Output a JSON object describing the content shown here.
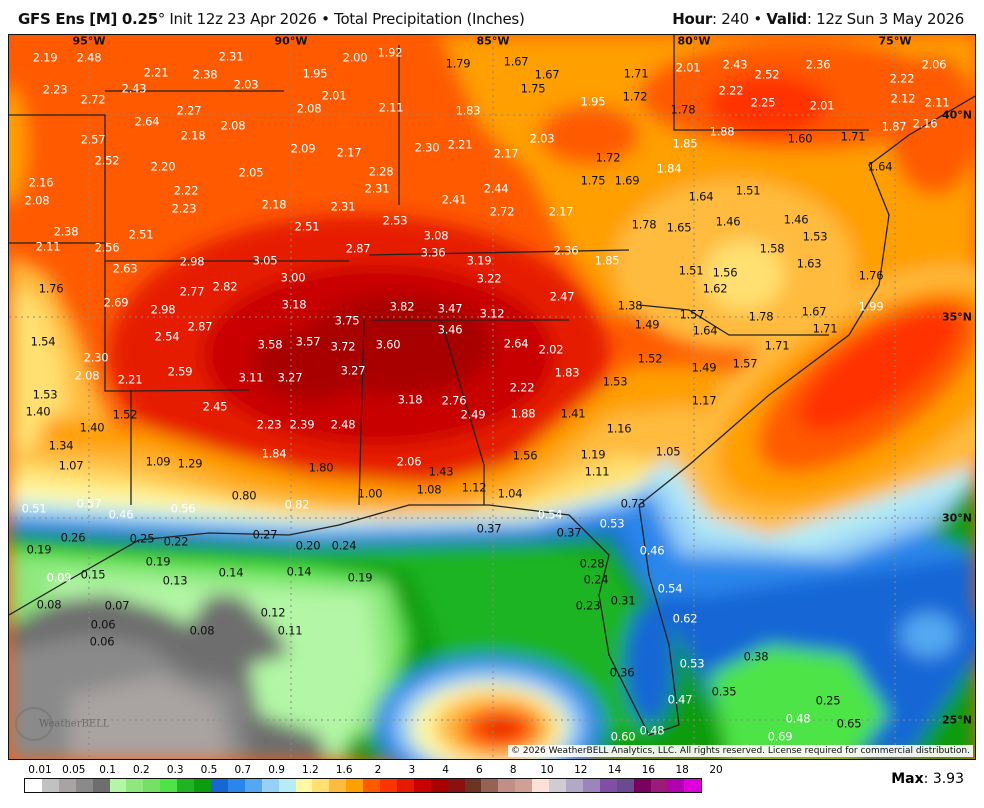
{
  "header": {
    "model": "GFS Ens [M] 0.25",
    "degree": "°",
    "init": "Init 12z 23 Apr 2026",
    "separator": "•",
    "product": "Total Precipitation (Inches)",
    "hour_label": "Hour",
    "hour": "240",
    "valid_label": "Valid",
    "valid": "12z Sun 3 May 2026"
  },
  "map": {
    "longitude_labels": [
      "95°W",
      "90°W",
      "85°W",
      "80°W",
      "75°W"
    ],
    "latitude_labels": [
      "40°N",
      "35°N",
      "30°N",
      "25°N"
    ],
    "values": [
      "2.19",
      "2.48",
      "2.31",
      "2.21",
      "2.38",
      "2.03",
      "2.23",
      "2.43",
      "2.72",
      "2.27",
      "2.64",
      "2.08",
      "2.18",
      "2.57",
      "2.52",
      "2.20",
      "2.05",
      "2.16",
      "2.22",
      "2.08",
      "2.23",
      "2.18",
      "2.38",
      "2.11",
      "2.56",
      "2.51",
      "2.63",
      "2.98",
      "3.05",
      "2.00",
      "1.92",
      "1.95",
      "2.01",
      "2.08",
      "2.11",
      "2.09",
      "2.17",
      "2.28",
      "2.31",
      "2.31",
      "2.51",
      "2.87",
      "2.53",
      "2.30",
      "2.21",
      "1.79",
      "1.83",
      "2.41",
      "3.08",
      "3.36",
      "3.19",
      "3.22",
      "3.00",
      "1.67",
      "1.67",
      "1.75",
      "1.71",
      "1.72",
      "1.95",
      "2.03",
      "2.17",
      "1.72",
      "1.75",
      "1.69",
      "1.85",
      "1.84",
      "1.64",
      "2.44",
      "2.72",
      "2.17",
      "1.78",
      "1.65",
      "1.46",
      "1.51",
      "1.46",
      "1.53",
      "1.58",
      "1.63",
      "2.36",
      "1.85",
      "1.51",
      "1.56",
      "1.62",
      "2.01",
      "2.43",
      "2.52",
      "2.36",
      "2.22",
      "2.25",
      "2.01",
      "2.22",
      "2.06",
      "2.12",
      "2.11",
      "2.16",
      "1.87",
      "1.78",
      "1.88",
      "1.60",
      "1.71",
      "1.64",
      "1.76",
      "1.76",
      "2.69",
      "2.77",
      "2.82",
      "2.98",
      "3.18",
      "3.82",
      "3.47",
      "3.12",
      "2.87",
      "3.75",
      "3.46",
      "1.54",
      "2.54",
      "3.58",
      "3.57",
      "3.72",
      "3.60",
      "2.30",
      "2.08",
      "2.21",
      "2.59",
      "3.11",
      "3.27",
      "3.27",
      "1.53",
      "1.40",
      "1.52",
      "1.40",
      "2.45",
      "3.18",
      "2.76",
      "2.49",
      "2.23",
      "2.39",
      "2.48",
      "1.34",
      "1.84",
      "1.09",
      "1.29",
      "1.07",
      "1.80",
      "2.06",
      "1.43",
      "1.08",
      "1.12",
      "0.80",
      "0.82",
      "1.00",
      "0.51",
      "0.57",
      "0.46",
      "0.56",
      "2.47",
      "1.38",
      "1.49",
      "1.57",
      "1.78",
      "1.67",
      "1.99",
      "1.71",
      "2.64",
      "2.02",
      "1.64",
      "1.71",
      "1.52",
      "1.49",
      "1.57",
      "1.83",
      "1.53",
      "1.17",
      "2.22",
      "1.88",
      "1.41",
      "1.16",
      "1.05",
      "1.56",
      "1.19",
      "1.11",
      "1.04",
      "0.73",
      "0.54",
      "0.53",
      "0.37",
      "0.37",
      "0.46",
      "0.28",
      "0.24",
      "0.23",
      "0.31",
      "0.54",
      "0.62",
      "0.53",
      "0.36",
      "0.47",
      "0.60",
      "0.48",
      "0.38",
      "0.35",
      "0.25",
      "0.48",
      "0.65",
      "0.69",
      "0.19",
      "0.26",
      "0.25",
      "0.22",
      "0.27",
      "0.20",
      "0.24",
      "0.19",
      "0.09",
      "0.15",
      "0.13",
      "0.14",
      "0.14",
      "0.19",
      "0.08",
      "0.07",
      "0.06",
      "0.06",
      "0.08",
      "0.12",
      "0.11"
    ],
    "copyright": "© 2026 WeatherBELL Analytics, LLC. All rights reserved. License required for commercial distribution.",
    "logo_text": "WeatherBELL"
  },
  "legend": {
    "ticks": [
      "0.01",
      "0.05",
      "0.1",
      "0.2",
      "0.3",
      "0.5",
      "0.7",
      "0.9",
      "1.2",
      "1.6",
      "2",
      "3",
      "4",
      "6",
      "8",
      "10",
      "12",
      "14",
      "16",
      "18",
      "20"
    ],
    "colors": [
      "#ffffff",
      "#bfc1c3",
      "#a9a3a1",
      "#8a8a8a",
      "#6e6e6e",
      "#b3f7a6",
      "#8ee87d",
      "#74e064",
      "#4ee447",
      "#1fb424",
      "#0d9c0f",
      "#1766d6",
      "#2a86ea",
      "#52a9f2",
      "#97d0f7",
      "#b5ecf5",
      "#fff9a6",
      "#ffe070",
      "#ffbb3d",
      "#ff9f00",
      "#ff5a00",
      "#ff3300",
      "#e61a00",
      "#c80000",
      "#a80000",
      "#8b1010",
      "#6b3426",
      "#956355",
      "#c28e8a",
      "#d1a095",
      "#fde0d6",
      "#d0cdd2",
      "#b4a8c8",
      "#9b85bb",
      "#7f4fa6",
      "#6a4a90",
      "#7a0060",
      "#9c1a78",
      "#b000b0",
      "#dd00dd"
    ],
    "max_label": "Max",
    "max_value": "3.93"
  }
}
